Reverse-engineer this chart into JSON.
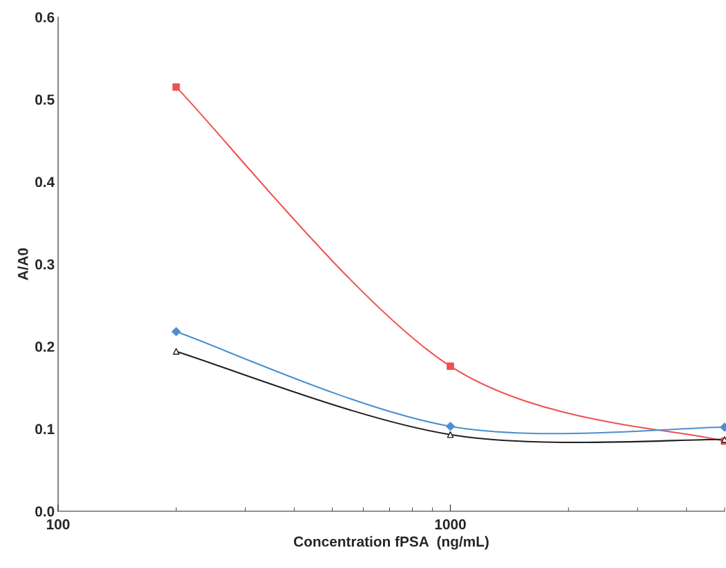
{
  "chart_data": {
    "type": "line",
    "xlabel": "Concentration fPSA  (ng/mL)",
    "ylabel": "A/A0",
    "log": "x",
    "x": [
      200,
      1000,
      5000
    ],
    "series": [
      {
        "color": "#f05050",
        "values": [
          0.515,
          0.176,
          0.085
        ],
        "marker": "square"
      },
      {
        "color": "#4a8fd0",
        "values": [
          0.218,
          0.103,
          0.102
        ],
        "marker": "diamond"
      },
      {
        "color": "#202020",
        "values": [
          0.194,
          0.093,
          0.087
        ],
        "marker": "triangle"
      }
    ],
    "xlim": [
      100,
      5000
    ],
    "xticks": [
      100,
      1000
    ],
    "ylim": [
      0.0,
      0.6
    ],
    "yticks": [
      {
        "value": 0.0,
        "label": "0.0"
      },
      0.1,
      0.2,
      0.3,
      0.4,
      0.5,
      0.6
    ],
    "grid": false
  }
}
